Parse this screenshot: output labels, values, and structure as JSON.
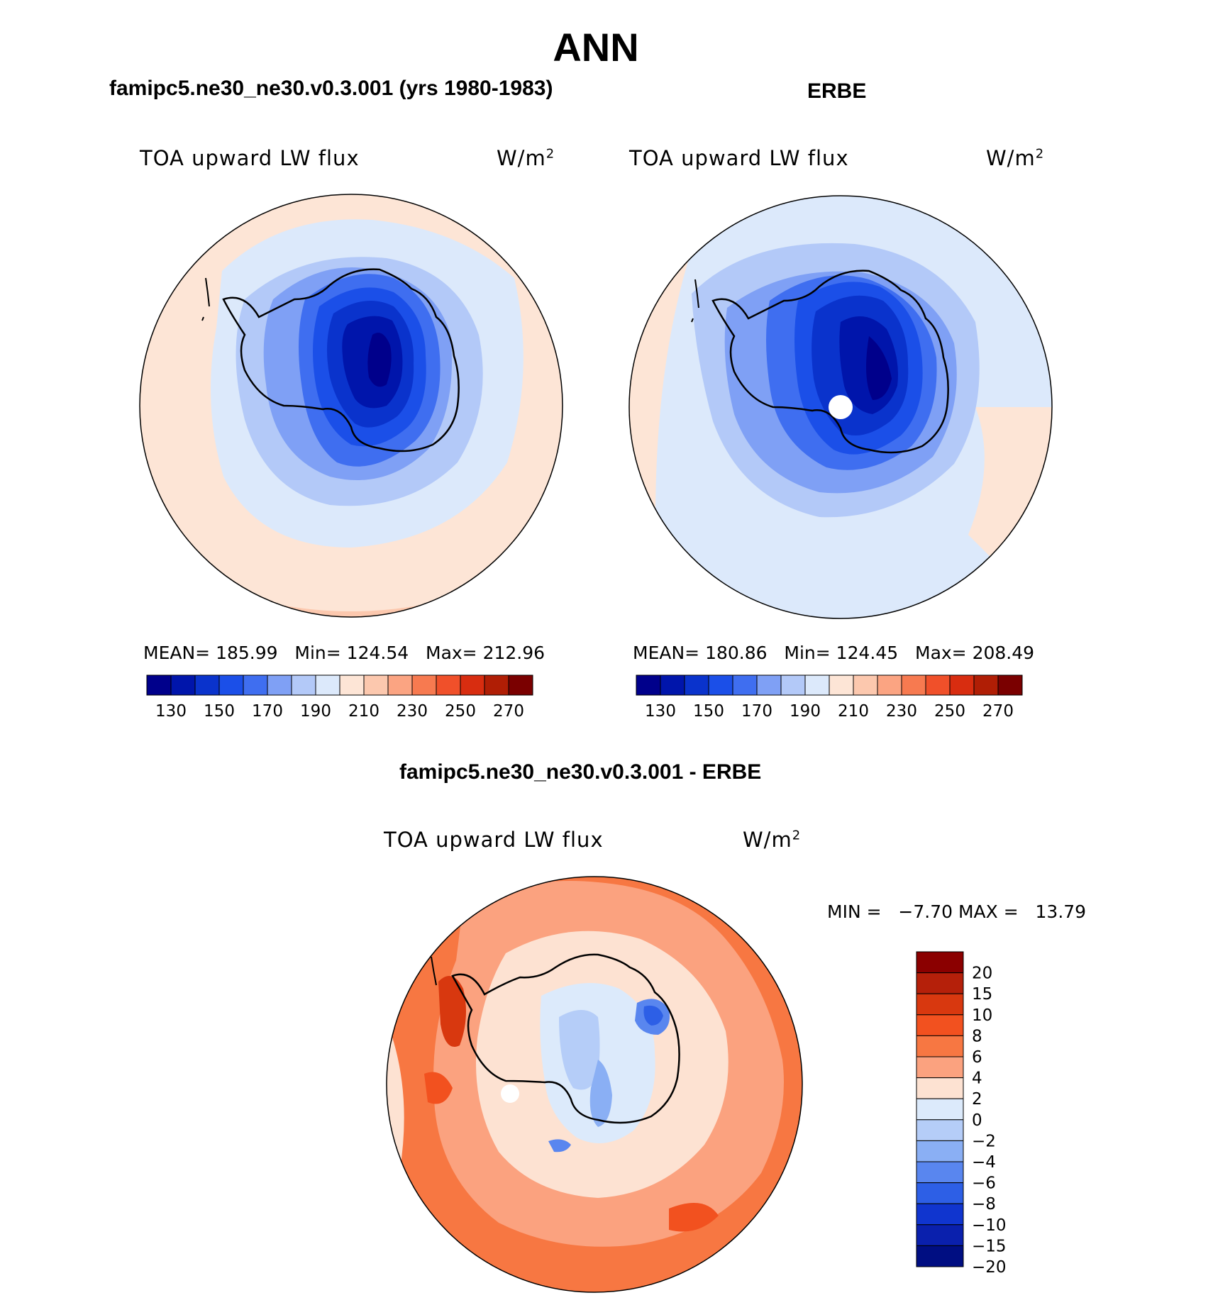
{
  "title": "ANN",
  "panels": [
    {
      "title": "famipc5.ne30_ne30.v0.3.001 (yrs 1980-1983)",
      "variable": "TOA upward LW flux",
      "units": "W/m",
      "units_sup": "2",
      "mean_label": "MEAN=",
      "mean": "185.99",
      "min_label": "Min=",
      "min": "124.54",
      "max_label": "Max=",
      "max": "212.96",
      "polar_hole": false
    },
    {
      "title": "ERBE",
      "variable": "TOA upward LW flux",
      "units": "W/m",
      "units_sup": "2",
      "mean_label": "MEAN=",
      "mean": "180.86",
      "min_label": "Min=",
      "min": "124.45",
      "max_label": "Max=",
      "max": "208.49",
      "polar_hole": true
    }
  ],
  "abs_colorbar": {
    "colors": [
      "#00008b",
      "#0015ab",
      "#0a33cc",
      "#1b4fe8",
      "#3f6ef0",
      "#7fa0f5",
      "#b3c9f8",
      "#dce9fb",
      "#fde5d6",
      "#fcc8ae",
      "#fba482",
      "#f77a50",
      "#f0502a",
      "#d82d10",
      "#b01e05",
      "#7a0000"
    ],
    "tick_labels": [
      "130",
      "150",
      "170",
      "190",
      "210",
      "230",
      "250",
      "270"
    ]
  },
  "diff_panel": {
    "title": "famipc5.ne30_ne30.v0.3.001 - ERBE",
    "variable": "TOA upward LW flux",
    "units": "W/m",
    "units_sup": "2",
    "min_label": "MIN =",
    "min": "−7.70",
    "max_label": "MAX =",
    "max": "13.79"
  },
  "diff_colorbar": {
    "colors_top_to_bottom": [
      "#8b0000",
      "#b5200a",
      "#d8380f",
      "#f2511f",
      "#f77742",
      "#fba27f",
      "#fde2d2",
      "#dceafb",
      "#b5cdf8",
      "#8aaff4",
      "#5986ef",
      "#2d5fe6",
      "#1035cf",
      "#0a20ad",
      "#000e82"
    ],
    "tick_labels": [
      "20",
      "15",
      "10",
      "8",
      "6",
      "4",
      "2",
      "0",
      "−2",
      "−4",
      "−6",
      "−8",
      "−10",
      "−15",
      "−20"
    ]
  }
}
